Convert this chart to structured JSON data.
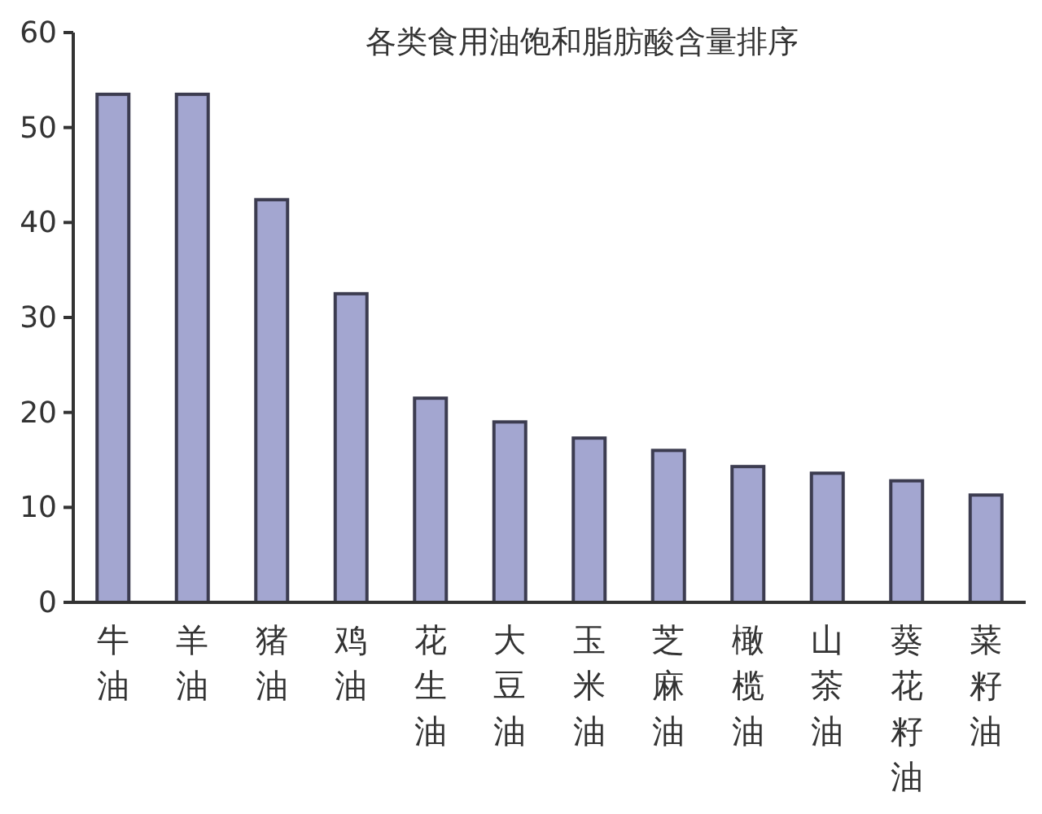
{
  "chart_data": {
    "type": "bar",
    "title": "各类食用油饱和脂肪酸含量排序",
    "categories": [
      "牛油",
      "羊油",
      "猪油",
      "鸡油",
      "花生油",
      "大豆油",
      "玉米油",
      "芝麻油",
      "橄榄油",
      "山茶油",
      "葵花籽油",
      "菜籽油"
    ],
    "values": [
      53.5,
      53.5,
      42.4,
      32.5,
      21.5,
      19,
      17.3,
      16,
      14.3,
      13.6,
      12.8,
      11.3
    ],
    "color": "#a3a6d0",
    "ylim": [
      0,
      60
    ],
    "yticks": [
      0,
      10,
      20,
      30,
      40,
      50,
      60
    ],
    "grid": false
  }
}
